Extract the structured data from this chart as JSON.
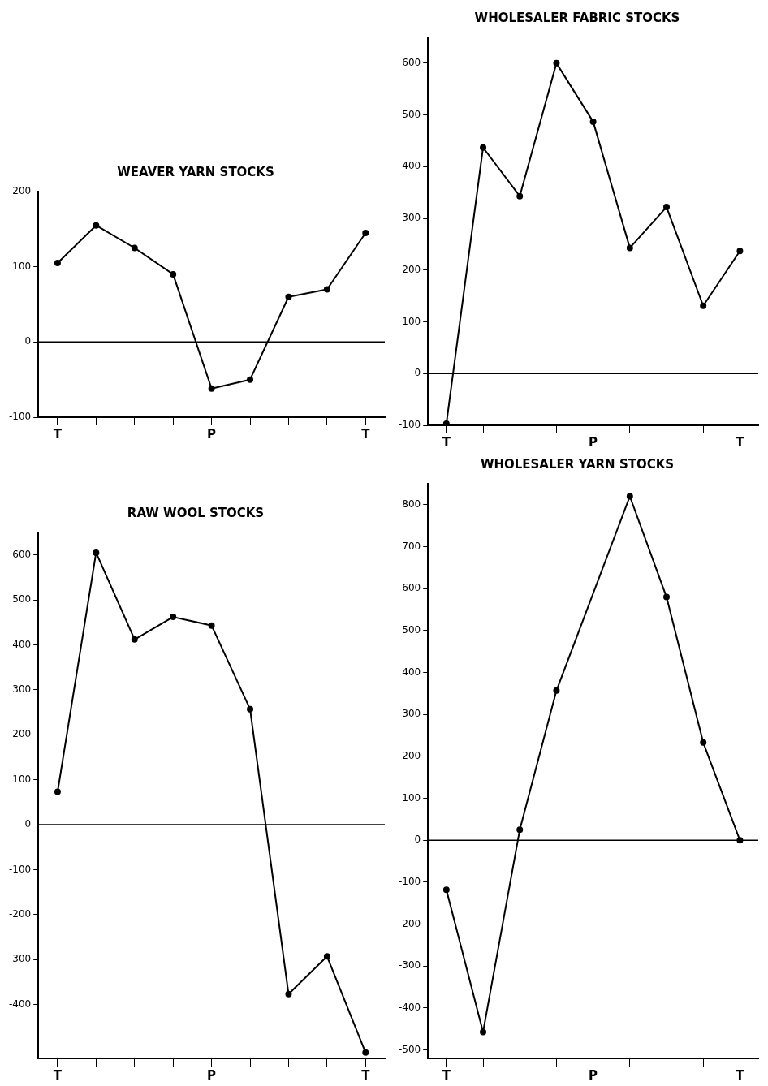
{
  "chart_data": [
    {
      "type": "line",
      "title": "WEAVER YARN STOCKS",
      "categories": [
        "T",
        null,
        null,
        null,
        "P",
        null,
        null,
        null,
        "T"
      ],
      "series": [
        {
          "color": "#000000",
          "values": [
            105,
            155,
            125,
            90,
            -62,
            -50,
            60,
            70,
            145
          ]
        }
      ],
      "ylim": [
        -100,
        200
      ],
      "yticks": [
        -100,
        0,
        100,
        200
      ],
      "ref_lines": [
        {
          "axis": "y",
          "value": 0
        }
      ],
      "grid": false,
      "legend": false,
      "marker": "circle",
      "line_style": "solid"
    },
    {
      "type": "line",
      "title": "WHOLESALER FABRIC STOCKS",
      "categories": [
        "T",
        null,
        null,
        null,
        "P",
        null,
        null,
        null,
        "T"
      ],
      "series": [
        {
          "color": "#000000",
          "values": [
            -97,
            437,
            343,
            600,
            487,
            243,
            322,
            131,
            237
          ]
        }
      ],
      "ylim": [
        -100,
        650
      ],
      "yticks": [
        -100,
        0,
        100,
        200,
        300,
        400,
        500,
        600
      ],
      "ref_lines": [
        {
          "axis": "y",
          "value": 0
        }
      ],
      "grid": false,
      "legend": false,
      "marker": "circle",
      "line_style": "solid"
    },
    {
      "type": "line",
      "title": "RAW WOOL STOCKS",
      "categories": [
        "T",
        null,
        null,
        null,
        "P",
        null,
        null,
        null,
        "T"
      ],
      "series": [
        {
          "color": "#000000",
          "values": [
            73,
            605,
            412,
            462,
            443,
            257,
            -377,
            -293,
            -507
          ]
        }
      ],
      "ylim": [
        -520,
        650
      ],
      "yticks": [
        -400,
        -300,
        -200,
        -100,
        0,
        100,
        200,
        300,
        400,
        500,
        600
      ],
      "ref_lines": [
        {
          "axis": "y",
          "value": 0
        }
      ],
      "grid": false,
      "legend": false,
      "marker": "circle",
      "line_style": "solid"
    },
    {
      "type": "line",
      "title": "WHOLESALER YARN STOCKS",
      "categories": [
        "T",
        null,
        null,
        null,
        "P",
        null,
        null,
        null,
        "T"
      ],
      "series": [
        {
          "color": "#000000",
          "values": [
            -118,
            -457,
            25,
            357,
            null,
            820,
            580,
            233,
            0
          ]
        }
      ],
      "ylim": [
        -520,
        850
      ],
      "yticks": [
        -500,
        -400,
        -300,
        -200,
        -100,
        0,
        100,
        200,
        300,
        400,
        500,
        600,
        700,
        800
      ],
      "ref_lines": [
        {
          "axis": "y",
          "value": 0
        }
      ],
      "grid": false,
      "legend": false,
      "marker": "circle",
      "line_style": "solid"
    }
  ]
}
